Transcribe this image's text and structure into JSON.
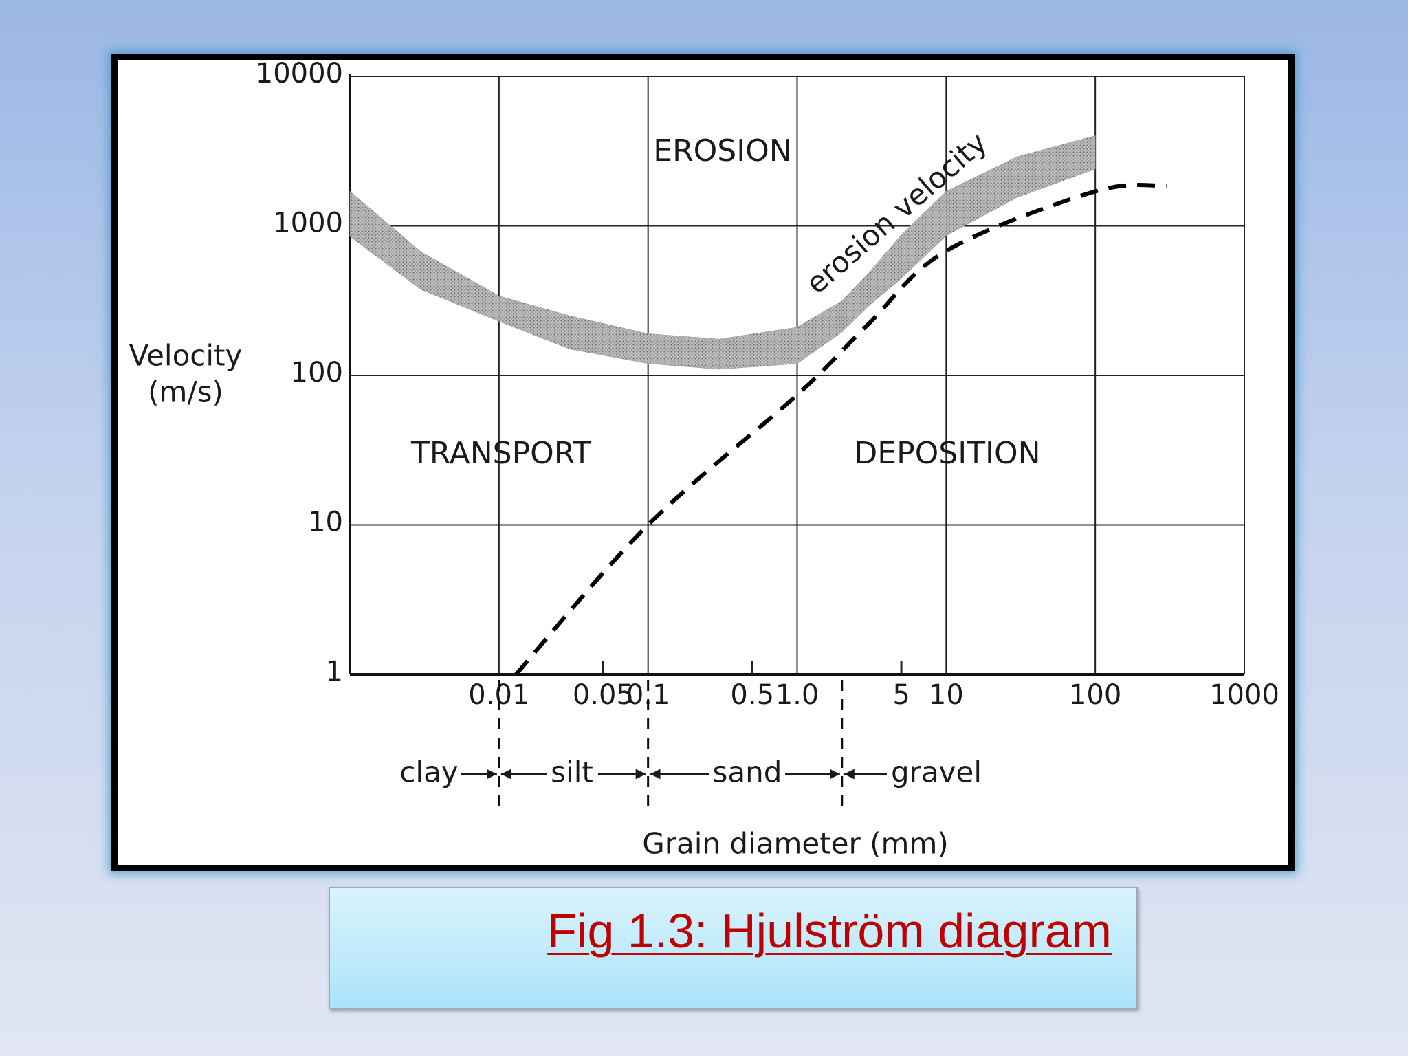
{
  "chart_data": {
    "type": "line",
    "xlog": true,
    "ylog": true,
    "grid": true,
    "xlim": [
      0.001,
      1000
    ],
    "ylim": [
      1,
      10000
    ],
    "xticks": [
      0.01,
      0.1,
      {
        "value": 1,
        "label": "1.0"
      },
      10,
      100,
      1000
    ],
    "x_minor_ticks": [
      0.05,
      0.5,
      5
    ],
    "yticks": [
      1,
      10,
      100,
      1000,
      10000
    ],
    "y_label": [
      "Velocity",
      "(m/s)"
    ],
    "x_label": "Grain diameter (mm)",
    "annotations": [
      "EROSION",
      "TRANSPORT",
      "DEPOSITION"
    ],
    "size_classes": {
      "names": [
        "clay",
        "silt",
        "sand",
        "gravel"
      ],
      "boundaries": [
        0.01,
        0.1,
        2
      ]
    },
    "series": [
      {
        "name": "erosion velocity",
        "color": "#9a9a9a",
        "x": [
          0.001,
          0.003,
          0.01,
          0.03,
          0.1,
          0.3,
          1,
          2,
          3,
          5,
          10,
          30,
          100
        ],
        "upper": [
          1700,
          670,
          340,
          250,
          190,
          175,
          210,
          315,
          480,
          870,
          1700,
          2900,
          4000
        ],
        "lower": [
          850,
          375,
          230,
          150,
          120,
          110,
          120,
          195,
          290,
          445,
          860,
          1550,
          2400
        ]
      },
      {
        "color": "#000000",
        "dashed": true,
        "x": [
          0.013,
          0.1,
          1,
          3,
          10,
          100,
          300
        ],
        "values": [
          1,
          10,
          74,
          220,
          680,
          1700,
          1850
        ]
      }
    ]
  },
  "caption": "Fig 1.3: Hjulström diagram"
}
